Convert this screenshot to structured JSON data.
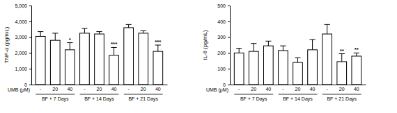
{
  "chart_data": [
    {
      "type": "bar",
      "y_label": "TNF-α (pg/mL)",
      "x_label": "UMB (μM)",
      "categories": [
        "-",
        "20",
        "40",
        "-",
        "20",
        "40",
        "-",
        "20",
        "40"
      ],
      "groups": [
        "BF + 7 Days",
        "BF + 14 Days",
        "BF + 21 Days"
      ],
      "values": [
        3050,
        2800,
        2200,
        3250,
        3200,
        1850,
        3600,
        3250,
        2100
      ],
      "errors": [
        300,
        450,
        450,
        300,
        150,
        500,
        200,
        150,
        400
      ],
      "significance": [
        null,
        null,
        "*",
        null,
        null,
        "***",
        null,
        null,
        "***"
      ],
      "color": "#ffffff",
      "ylim": [
        0,
        5000
      ],
      "yticks": [
        0,
        {
          "value": 1000,
          "label": "1,000"
        },
        {
          "value": 2000,
          "label": "2,000"
        },
        {
          "value": 3000,
          "label": "3,000"
        },
        {
          "value": 4000,
          "label": "4,000"
        },
        {
          "value": 5000,
          "label": "5,000"
        }
      ],
      "grid": false
    },
    {
      "type": "bar",
      "y_label": "IL-6 (pg/mL)",
      "x_label": "UMB (μM)",
      "categories": [
        "-",
        "20",
        "40",
        "-",
        "20",
        "40",
        "-",
        "20",
        "40"
      ],
      "groups": [
        "BF + 7 Days",
        "BF + 14 Days",
        "BF + 21 Days"
      ],
      "values": [
        200,
        210,
        245,
        215,
        140,
        220,
        320,
        145,
        180
      ],
      "errors": [
        30,
        50,
        30,
        30,
        30,
        65,
        60,
        50,
        20
      ],
      "significance": [
        null,
        null,
        null,
        null,
        null,
        null,
        null,
        "**",
        "**"
      ],
      "color": "#ffffff",
      "ylim": [
        0,
        500
      ],
      "yticks": [
        0,
        100,
        200,
        300,
        400,
        500
      ],
      "grid": false
    }
  ]
}
